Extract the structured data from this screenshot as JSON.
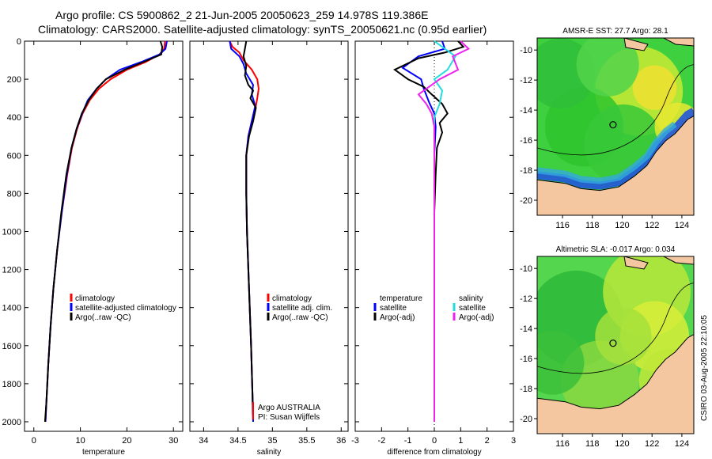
{
  "title": {
    "line1": "Argo profile: CS 5900862_2 21-Jun-2005 20050623_259 14.978S 119.386E",
    "line2": "Climatology: CARS2000. Satellite-adjusted climatology: synTS_20050621.nc (0.95d earlier)"
  },
  "colors": {
    "climatology": "#ff0000",
    "satellite": "#0000ff",
    "argo": "#000000",
    "salinity_sat": "#22dddd",
    "salinity_argo": "#ee22ee",
    "land": "#f5c7a0",
    "ocean": "#33cc33"
  },
  "chart_data": [
    {
      "type": "line",
      "name": "temperature-profile",
      "xlabel": "temperature",
      "ylabel": "",
      "xlim": [
        -2,
        32
      ],
      "ylim": [
        2050,
        0
      ],
      "xticks": [
        0,
        10,
        20,
        30
      ],
      "yticks": [
        0,
        200,
        400,
        600,
        800,
        1000,
        1200,
        1400,
        1600,
        1800,
        2000
      ],
      "legend": [
        "climatology",
        "satellite-adjusted climatology",
        "Argo(..raw -QC)"
      ],
      "series": [
        {
          "name": "climatology",
          "color": "#ff0000",
          "points": [
            [
              28.2,
              0
            ],
            [
              28.0,
              40
            ],
            [
              27.0,
              70
            ],
            [
              24.0,
              110
            ],
            [
              20.0,
              150
            ],
            [
              16.5,
              200
            ],
            [
              14.0,
              250
            ],
            [
              12.0,
              310
            ],
            [
              10.5,
              380
            ],
            [
              9.3,
              460
            ],
            [
              8.2,
              560
            ],
            [
              7.2,
              700
            ],
            [
              6.0,
              900
            ],
            [
              5.0,
              1100
            ],
            [
              4.2,
              1300
            ],
            [
              3.6,
              1500
            ],
            [
              3.1,
              1700
            ],
            [
              2.7,
              1900
            ],
            [
              2.5,
              2000
            ]
          ]
        },
        {
          "name": "satellite-adjusted climatology",
          "color": "#0000ff",
          "points": [
            [
              28.6,
              0
            ],
            [
              28.3,
              40
            ],
            [
              27.0,
              70
            ],
            [
              23.0,
              110
            ],
            [
              18.5,
              150
            ],
            [
              15.5,
              200
            ],
            [
              13.5,
              250
            ],
            [
              11.6,
              310
            ],
            [
              10.4,
              380
            ],
            [
              9.2,
              460
            ],
            [
              8.1,
              560
            ],
            [
              7.1,
              700
            ],
            [
              6.0,
              900
            ],
            [
              5.0,
              1100
            ],
            [
              4.2,
              1300
            ],
            [
              3.6,
              1500
            ],
            [
              3.1,
              1700
            ],
            [
              2.7,
              1900
            ],
            [
              2.5,
              2000
            ]
          ]
        },
        {
          "name": "Argo(..raw -QC)",
          "color": "#000000",
          "points": [
            [
              27.2,
              0
            ],
            [
              27.6,
              30
            ],
            [
              27.4,
              70
            ],
            [
              23.5,
              110
            ],
            [
              19.5,
              150
            ],
            [
              15.5,
              200
            ],
            [
              13.5,
              250
            ],
            [
              11.8,
              310
            ],
            [
              10.3,
              380
            ],
            [
              9.2,
              460
            ],
            [
              8.1,
              560
            ],
            [
              7.0,
              700
            ],
            [
              5.9,
              900
            ],
            [
              5.0,
              1100
            ],
            [
              4.2,
              1300
            ],
            [
              3.6,
              1500
            ],
            [
              3.1,
              1700
            ],
            [
              2.7,
              1900
            ],
            [
              2.4,
              2000
            ]
          ]
        }
      ]
    },
    {
      "type": "line",
      "name": "salinity-profile",
      "xlabel": "salinity",
      "xlim": [
        33.8,
        36.1
      ],
      "ylim": [
        2050,
        0
      ],
      "xticks": [
        34,
        34.5,
        35,
        35.5,
        36
      ],
      "legend": [
        "climatology",
        "satellite adj. clim.",
        "Argo(..raw -QC)"
      ],
      "annotation": [
        "Argo AUSTRALIA",
        "PI: Susan Wijffels"
      ],
      "series": [
        {
          "name": "climatology",
          "color": "#ff0000",
          "points": [
            [
              34.38,
              0
            ],
            [
              34.42,
              30
            ],
            [
              34.52,
              60
            ],
            [
              34.58,
              100
            ],
            [
              34.7,
              150
            ],
            [
              34.78,
              200
            ],
            [
              34.8,
              250
            ],
            [
              34.78,
              300
            ],
            [
              34.75,
              360
            ],
            [
              34.7,
              420
            ],
            [
              34.65,
              500
            ],
            [
              34.62,
              600
            ],
            [
              34.62,
              800
            ],
            [
              34.63,
              1000
            ],
            [
              34.66,
              1300
            ],
            [
              34.69,
              1600
            ],
            [
              34.71,
              1850
            ],
            [
              34.72,
              2000
            ]
          ]
        },
        {
          "name": "satellite adj. clim.",
          "color": "#0000ff",
          "points": [
            [
              34.38,
              0
            ],
            [
              34.4,
              40
            ],
            [
              34.52,
              80
            ],
            [
              34.58,
              120
            ],
            [
              34.62,
              170
            ],
            [
              34.72,
              230
            ],
            [
              34.7,
              280
            ],
            [
              34.75,
              340
            ],
            [
              34.7,
              420
            ],
            [
              34.65,
              500
            ],
            [
              34.62,
              600
            ],
            [
              34.62,
              800
            ],
            [
              34.63,
              1000
            ],
            [
              34.66,
              1300
            ],
            [
              34.69,
              1600
            ],
            [
              34.71,
              1850
            ],
            [
              34.72,
              2000
            ]
          ]
        },
        {
          "name": "Argo(..raw -QC)",
          "color": "#000000",
          "points": [
            [
              34.62,
              0
            ],
            [
              34.6,
              40
            ],
            [
              34.58,
              80
            ],
            [
              34.62,
              130
            ],
            [
              34.6,
              180
            ],
            [
              34.65,
              230
            ],
            [
              34.72,
              260
            ],
            [
              34.68,
              300
            ],
            [
              34.76,
              350
            ],
            [
              34.72,
              420
            ],
            [
              34.66,
              500
            ],
            [
              34.62,
              600
            ],
            [
              34.62,
              800
            ],
            [
              34.63,
              1000
            ],
            [
              34.66,
              1300
            ],
            [
              34.69,
              1600
            ],
            [
              34.71,
              1850
            ],
            [
              34.72,
              1980
            ]
          ]
        }
      ]
    },
    {
      "type": "line",
      "name": "difference-profile",
      "xlabel": "difference from climatology",
      "xlim": [
        -3,
        3
      ],
      "ylim": [
        2050,
        0
      ],
      "xticks": [
        -3,
        -2,
        -1,
        0,
        1,
        2,
        3
      ],
      "legend_left": [
        "temperature",
        "satellite",
        "Argo(-adj)"
      ],
      "legend_right": [
        "salinity",
        "satellite",
        "Argo(-adj)"
      ],
      "series": [
        {
          "name": "temperature satellite",
          "color": "#0000ff",
          "points": [
            [
              0.3,
              0
            ],
            [
              0.4,
              40
            ],
            [
              -0.6,
              80
            ],
            [
              -1.2,
              140
            ],
            [
              -0.5,
              200
            ],
            [
              -0.4,
              250
            ],
            [
              -0.2,
              320
            ],
            [
              0.0,
              380
            ],
            [
              0.05,
              450
            ],
            [
              0.0,
              600
            ],
            [
              0.0,
              900
            ],
            [
              0.0,
              1400
            ],
            [
              0.0,
              2000
            ]
          ]
        },
        {
          "name": "temperature Argo(-adj)",
          "color": "#000000",
          "points": [
            [
              0.9,
              0
            ],
            [
              1.1,
              30
            ],
            [
              0.4,
              60
            ],
            [
              -0.6,
              90
            ],
            [
              -1.5,
              150
            ],
            [
              -1.0,
              200
            ],
            [
              -0.4,
              240
            ],
            [
              -0.1,
              280
            ],
            [
              0.3,
              330
            ],
            [
              0.5,
              380
            ],
            [
              0.2,
              430
            ],
            [
              0.3,
              480
            ],
            [
              0.1,
              560
            ],
            [
              0.05,
              700
            ],
            [
              0.0,
              900
            ],
            [
              0.0,
              1400
            ],
            [
              0.0,
              2000
            ]
          ]
        },
        {
          "name": "salinity satellite",
          "color": "#22dddd",
          "points": [
            [
              0.0,
              0
            ],
            [
              0.4,
              40
            ],
            [
              0.8,
              80
            ],
            [
              0.5,
              150
            ],
            [
              0.0,
              200
            ],
            [
              0.3,
              260
            ],
            [
              0.2,
              330
            ],
            [
              0.0,
              400
            ],
            [
              0.0,
              600
            ],
            [
              0.0,
              900
            ],
            [
              0.0,
              1400
            ],
            [
              0.0,
              2000
            ]
          ]
        },
        {
          "name": "salinity Argo(-adj)",
          "color": "#ee22ee",
          "points": [
            [
              1.0,
              0
            ],
            [
              1.3,
              40
            ],
            [
              0.7,
              80
            ],
            [
              0.9,
              150
            ],
            [
              0.2,
              200
            ],
            [
              -0.6,
              280
            ],
            [
              -0.3,
              330
            ],
            [
              -0.1,
              380
            ],
            [
              0.0,
              450
            ],
            [
              0.0,
              600
            ],
            [
              0.0,
              1000
            ],
            [
              0.0,
              1500
            ],
            [
              0.0,
              2000
            ]
          ]
        }
      ]
    },
    {
      "type": "heatmap",
      "name": "sst-map",
      "title": "AMSR-E SST: 27.7 Argo: 28.1",
      "xticks": [
        116,
        118,
        120,
        122,
        124
      ],
      "yticks": [
        -10,
        -12,
        -14,
        -16,
        -18,
        -20
      ],
      "xlim": [
        114.3,
        124.8
      ],
      "ylim": [
        -21,
        -9.2
      ],
      "marker": [
        119.386,
        -14.978
      ]
    },
    {
      "type": "heatmap",
      "name": "sla-map",
      "title": "Altimetric SLA: -0.017 Argo: 0.034",
      "xticks": [
        116,
        118,
        120,
        122,
        124
      ],
      "yticks": [
        -10,
        -12,
        -14,
        -16,
        -18,
        -20
      ],
      "xlim": [
        114.3,
        124.8
      ],
      "ylim": [
        -21,
        -9.2
      ],
      "marker": [
        119.386,
        -14.978
      ]
    }
  ],
  "stamp": "CSIRO 03-Aug-2005 22:10:05"
}
